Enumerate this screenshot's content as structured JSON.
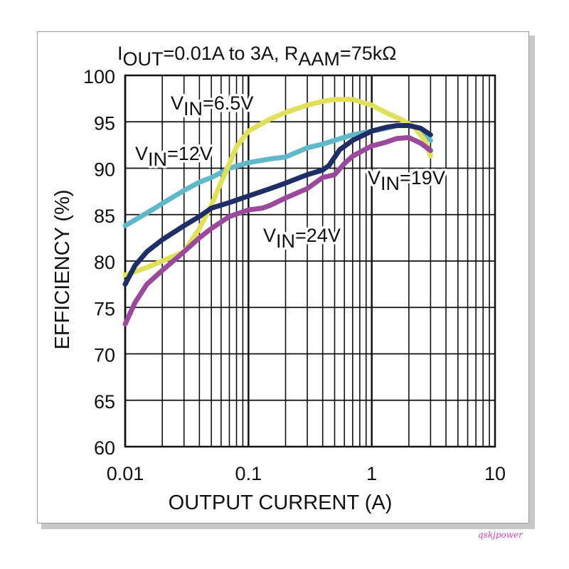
{
  "chart_data": {
    "type": "line",
    "title_parts": [
      {
        "text": "I",
        "sub": false
      },
      {
        "text": "OUT",
        "sub": true
      },
      {
        "text": "=0.01A to 3A, R",
        "sub": false
      },
      {
        "text": "AAM",
        "sub": true
      },
      {
        "text": "=75kΩ",
        "sub": false
      }
    ],
    "xlabel": "OUTPUT CURRENT (A)",
    "ylabel": "EFFICIENCY (%)",
    "x_scale": "log",
    "xlim": [
      0.01,
      10
    ],
    "ylim": [
      60,
      100
    ],
    "x_tick_labels": [
      {
        "value": 0.01,
        "label": "0.01"
      },
      {
        "value": 0.1,
        "label": "0.1"
      },
      {
        "value": 1,
        "label": "1"
      },
      {
        "value": 10,
        "label": "10"
      }
    ],
    "y_ticks": [
      60,
      65,
      70,
      75,
      80,
      85,
      90,
      95,
      100
    ],
    "grid": true,
    "series": [
      {
        "name_parts": [
          {
            "text": "V",
            "sub": false
          },
          {
            "text": "IN",
            "sub": true
          },
          {
            "text": "=12V",
            "sub": false
          }
        ],
        "color": "#5fb9c9",
        "points": [
          [
            0.01,
            83.8
          ],
          [
            0.013,
            84.7
          ],
          [
            0.017,
            85.6
          ],
          [
            0.02,
            86.2
          ],
          [
            0.03,
            87.6
          ],
          [
            0.04,
            88.5
          ],
          [
            0.05,
            89.0
          ],
          [
            0.07,
            90.0
          ],
          [
            0.1,
            90.6
          ],
          [
            0.15,
            91.0
          ],
          [
            0.2,
            91.2
          ],
          [
            0.3,
            92.2
          ],
          [
            0.4,
            92.6
          ],
          [
            0.5,
            93.0
          ],
          [
            0.7,
            93.6
          ],
          [
            1.0,
            94.0
          ],
          [
            1.3,
            94.3
          ],
          [
            1.6,
            94.6
          ],
          [
            2.0,
            94.6
          ],
          [
            2.5,
            94.3
          ],
          [
            3.0,
            93.0
          ]
        ]
      },
      {
        "name_parts": [
          {
            "text": "V",
            "sub": false
          },
          {
            "text": "IN",
            "sub": true
          },
          {
            "text": "=6.5V",
            "sub": false
          }
        ],
        "color": "#e0e05a",
        "points": [
          [
            0.01,
            78.5
          ],
          [
            0.015,
            79.3
          ],
          [
            0.02,
            80.0
          ],
          [
            0.03,
            81.0
          ],
          [
            0.04,
            83.5
          ],
          [
            0.05,
            86.0
          ],
          [
            0.06,
            88.5
          ],
          [
            0.07,
            90.5
          ],
          [
            0.08,
            92.3
          ],
          [
            0.1,
            94.0
          ],
          [
            0.15,
            95.3
          ],
          [
            0.2,
            96.0
          ],
          [
            0.3,
            96.8
          ],
          [
            0.4,
            97.2
          ],
          [
            0.5,
            97.4
          ],
          [
            0.7,
            97.4
          ],
          [
            1.0,
            96.8
          ],
          [
            1.3,
            96.0
          ],
          [
            1.7,
            95.3
          ],
          [
            2.2,
            94.5
          ],
          [
            2.7,
            93.0
          ],
          [
            3.0,
            91.3
          ]
        ]
      },
      {
        "name_parts": [
          {
            "text": "V",
            "sub": false
          },
          {
            "text": "IN",
            "sub": true
          },
          {
            "text": "=19V",
            "sub": false
          }
        ],
        "color": "#1f2e66",
        "points": [
          [
            0.01,
            77.5
          ],
          [
            0.012,
            79.5
          ],
          [
            0.015,
            81.0
          ],
          [
            0.02,
            82.3
          ],
          [
            0.03,
            83.8
          ],
          [
            0.04,
            84.8
          ],
          [
            0.05,
            85.7
          ],
          [
            0.07,
            86.3
          ],
          [
            0.1,
            87.0
          ],
          [
            0.15,
            87.8
          ],
          [
            0.2,
            88.4
          ],
          [
            0.3,
            89.3
          ],
          [
            0.4,
            89.8
          ],
          [
            0.45,
            90.3
          ],
          [
            0.55,
            92.0
          ],
          [
            0.7,
            93.0
          ],
          [
            1.0,
            94.0
          ],
          [
            1.3,
            94.4
          ],
          [
            1.6,
            94.6
          ],
          [
            2.0,
            94.6
          ],
          [
            2.5,
            94.3
          ],
          [
            3.0,
            93.6
          ]
        ]
      },
      {
        "name_parts": [
          {
            "text": "V",
            "sub": false
          },
          {
            "text": "IN",
            "sub": true
          },
          {
            "text": "=24V",
            "sub": false
          }
        ],
        "color": "#9b4a9b",
        "points": [
          [
            0.01,
            73.2
          ],
          [
            0.012,
            75.5
          ],
          [
            0.015,
            77.5
          ],
          [
            0.02,
            79.0
          ],
          [
            0.03,
            81.0
          ],
          [
            0.04,
            82.5
          ],
          [
            0.05,
            83.5
          ],
          [
            0.07,
            84.8
          ],
          [
            0.1,
            85.5
          ],
          [
            0.13,
            85.7
          ],
          [
            0.15,
            86.0
          ],
          [
            0.2,
            86.8
          ],
          [
            0.3,
            87.8
          ],
          [
            0.4,
            89.0
          ],
          [
            0.5,
            89.3
          ],
          [
            0.6,
            90.5
          ],
          [
            0.7,
            91.3
          ],
          [
            1.0,
            92.4
          ],
          [
            1.3,
            92.8
          ],
          [
            1.6,
            93.2
          ],
          [
            2.0,
            93.3
          ],
          [
            2.5,
            92.7
          ],
          [
            3.0,
            91.9
          ]
        ]
      }
    ]
  },
  "watermark": "qskjpower"
}
